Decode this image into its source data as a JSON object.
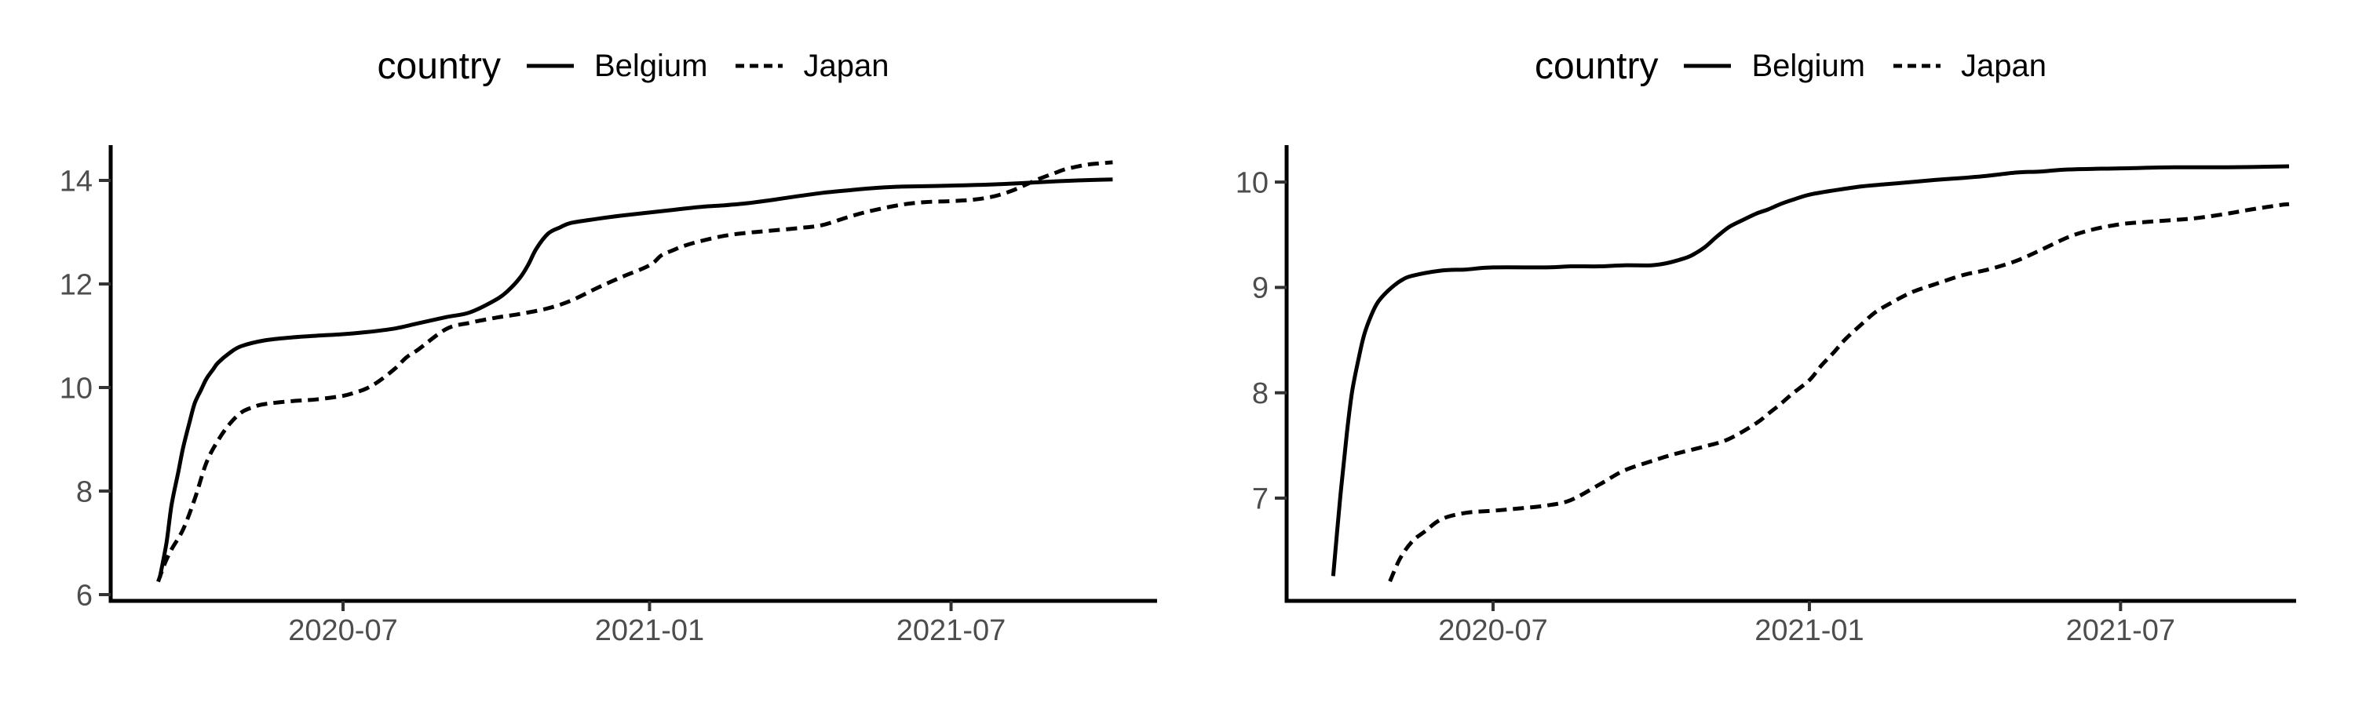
{
  "figure": {
    "background": "#ffffff",
    "colors": {
      "line": "#000000",
      "axis": "#000000",
      "tick_mark": "#333333",
      "tick_label": "#4d4d4d",
      "legend_text": "#000000"
    }
  },
  "chart_data": [
    {
      "type": "line",
      "title": "",
      "legend": {
        "title": "country",
        "position": "top"
      },
      "xlabel": "",
      "ylabel": "",
      "x_ticks": [
        {
          "label": "2020-07",
          "date": "2020-07-01"
        },
        {
          "label": "2021-01",
          "date": "2021-01-01"
        },
        {
          "label": "2021-07",
          "date": "2021-07-01"
        }
      ],
      "y_ticks": [
        6,
        8,
        10,
        12,
        14
      ],
      "xlim": [
        "2020-02-12",
        "2021-11-02"
      ],
      "ylim": [
        5.88,
        14.8
      ],
      "grid": false,
      "series": [
        {
          "name": "Belgium",
          "linetype": "solid",
          "points": [
            [
              "2020-03-13",
              6.33
            ],
            [
              "2020-03-17",
              7.0
            ],
            [
              "2020-03-20",
              7.72
            ],
            [
              "2020-03-24",
              8.35
            ],
            [
              "2020-03-27",
              8.84
            ],
            [
              "2020-03-31",
              9.35
            ],
            [
              "2020-04-03",
              9.7
            ],
            [
              "2020-04-07",
              9.97
            ],
            [
              "2020-04-10",
              10.17
            ],
            [
              "2020-04-14",
              10.35
            ],
            [
              "2020-04-17",
              10.48
            ],
            [
              "2020-04-24",
              10.67
            ],
            [
              "2020-05-01",
              10.8
            ],
            [
              "2020-05-15",
              10.91
            ],
            [
              "2020-06-01",
              10.97
            ],
            [
              "2020-06-15",
              11.0
            ],
            [
              "2020-07-01",
              11.03
            ],
            [
              "2020-07-15",
              11.07
            ],
            [
              "2020-08-01",
              11.14
            ],
            [
              "2020-08-15",
              11.24
            ],
            [
              "2020-09-01",
              11.36
            ],
            [
              "2020-09-15",
              11.45
            ],
            [
              "2020-10-01",
              11.7
            ],
            [
              "2020-10-08",
              11.87
            ],
            [
              "2020-10-15",
              12.11
            ],
            [
              "2020-10-20",
              12.36
            ],
            [
              "2020-10-25",
              12.68
            ],
            [
              "2020-11-01",
              12.97
            ],
            [
              "2020-11-08",
              13.09
            ],
            [
              "2020-11-15",
              13.18
            ],
            [
              "2020-12-01",
              13.26
            ],
            [
              "2020-12-15",
              13.32
            ],
            [
              "2021-01-01",
              13.38
            ],
            [
              "2021-01-15",
              13.43
            ],
            [
              "2021-02-01",
              13.49
            ],
            [
              "2021-02-15",
              13.52
            ],
            [
              "2021-03-01",
              13.56
            ],
            [
              "2021-03-15",
              13.62
            ],
            [
              "2021-04-01",
              13.7
            ],
            [
              "2021-04-15",
              13.76
            ],
            [
              "2021-05-01",
              13.81
            ],
            [
              "2021-05-15",
              13.85
            ],
            [
              "2021-06-01",
              13.88
            ],
            [
              "2021-07-01",
              13.9
            ],
            [
              "2021-08-01",
              13.93
            ],
            [
              "2021-09-01",
              13.98
            ],
            [
              "2021-09-15",
              14.0
            ],
            [
              "2021-10-06",
              14.02
            ]
          ]
        },
        {
          "name": "Japan",
          "linetype": "dashed",
          "points": [
            [
              "2020-03-12",
              6.25
            ],
            [
              "2020-03-16",
              6.6
            ],
            [
              "2020-03-20",
              6.87
            ],
            [
              "2020-03-27",
              7.26
            ],
            [
              "2020-04-03",
              7.85
            ],
            [
              "2020-04-10",
              8.55
            ],
            [
              "2020-04-17",
              8.98
            ],
            [
              "2020-04-24",
              9.3
            ],
            [
              "2020-05-01",
              9.52
            ],
            [
              "2020-05-08",
              9.62
            ],
            [
              "2020-05-15",
              9.68
            ],
            [
              "2020-06-01",
              9.74
            ],
            [
              "2020-06-15",
              9.77
            ],
            [
              "2020-07-01",
              9.84
            ],
            [
              "2020-07-08",
              9.9
            ],
            [
              "2020-07-15",
              9.98
            ],
            [
              "2020-07-22",
              10.11
            ],
            [
              "2020-08-01",
              10.36
            ],
            [
              "2020-08-08",
              10.58
            ],
            [
              "2020-08-15",
              10.73
            ],
            [
              "2020-09-01",
              11.13
            ],
            [
              "2020-09-15",
              11.25
            ],
            [
              "2020-10-01",
              11.35
            ],
            [
              "2020-10-15",
              11.42
            ],
            [
              "2020-11-01",
              11.53
            ],
            [
              "2020-11-15",
              11.68
            ],
            [
              "2020-12-01",
              11.93
            ],
            [
              "2020-12-15",
              12.13
            ],
            [
              "2021-01-01",
              12.36
            ],
            [
              "2021-01-08",
              12.55
            ],
            [
              "2021-01-15",
              12.65
            ],
            [
              "2021-01-22",
              12.74
            ],
            [
              "2021-02-01",
              12.83
            ],
            [
              "2021-02-15",
              12.93
            ],
            [
              "2021-03-01",
              12.99
            ],
            [
              "2021-03-15",
              13.03
            ],
            [
              "2021-04-01",
              13.08
            ],
            [
              "2021-04-15",
              13.14
            ],
            [
              "2021-05-01",
              13.3
            ],
            [
              "2021-05-15",
              13.42
            ],
            [
              "2021-06-01",
              13.53
            ],
            [
              "2021-06-15",
              13.58
            ],
            [
              "2021-07-01",
              13.6
            ],
            [
              "2021-07-15",
              13.63
            ],
            [
              "2021-07-25",
              13.68
            ],
            [
              "2021-08-01",
              13.74
            ],
            [
              "2021-08-08",
              13.82
            ],
            [
              "2021-08-15",
              13.92
            ],
            [
              "2021-08-22",
              14.02
            ],
            [
              "2021-09-01",
              14.14
            ],
            [
              "2021-09-08",
              14.22
            ],
            [
              "2021-09-15",
              14.27
            ],
            [
              "2021-09-22",
              14.31
            ],
            [
              "2021-10-06",
              14.35
            ]
          ]
        }
      ]
    },
    {
      "type": "line",
      "title": "",
      "legend": {
        "title": "country",
        "position": "top"
      },
      "xlabel": "",
      "ylabel": "",
      "x_ticks": [
        {
          "label": "2020-07",
          "date": "2020-07-01"
        },
        {
          "label": "2021-01",
          "date": "2021-01-01"
        },
        {
          "label": "2021-07",
          "date": "2021-07-01"
        }
      ],
      "y_ticks": [
        7,
        8,
        9,
        10
      ],
      "xlim": [
        "2020-03-02",
        "2021-10-12"
      ],
      "ylim": [
        6.02,
        10.35
      ],
      "grid": false,
      "series": [
        {
          "name": "Belgium",
          "linetype": "solid",
          "points": [
            [
              "2020-03-30",
              6.26
            ],
            [
              "2020-04-03",
              6.99
            ],
            [
              "2020-04-07",
              7.62
            ],
            [
              "2020-04-10",
              8.01
            ],
            [
              "2020-04-14",
              8.34
            ],
            [
              "2020-04-17",
              8.55
            ],
            [
              "2020-04-21",
              8.73
            ],
            [
              "2020-04-25",
              8.86
            ],
            [
              "2020-05-01",
              8.97
            ],
            [
              "2020-05-08",
              9.06
            ],
            [
              "2020-05-15",
              9.11
            ],
            [
              "2020-06-01",
              9.16
            ],
            [
              "2020-06-15",
              9.17
            ],
            [
              "2020-07-01",
              9.19
            ],
            [
              "2020-08-01",
              9.19
            ],
            [
              "2020-08-15",
              9.2
            ],
            [
              "2020-09-01",
              9.2
            ],
            [
              "2020-09-15",
              9.21
            ],
            [
              "2020-10-01",
              9.21
            ],
            [
              "2020-10-10",
              9.23
            ],
            [
              "2020-10-17",
              9.26
            ],
            [
              "2020-10-24",
              9.3
            ],
            [
              "2020-11-01",
              9.38
            ],
            [
              "2020-11-08",
              9.48
            ],
            [
              "2020-11-15",
              9.57
            ],
            [
              "2020-11-22",
              9.63
            ],
            [
              "2020-12-01",
              9.7
            ],
            [
              "2020-12-08",
              9.74
            ],
            [
              "2020-12-15",
              9.79
            ],
            [
              "2020-12-22",
              9.83
            ],
            [
              "2021-01-01",
              9.88
            ],
            [
              "2021-01-15",
              9.92
            ],
            [
              "2021-02-01",
              9.96
            ],
            [
              "2021-02-15",
              9.98
            ],
            [
              "2021-03-01",
              10.0
            ],
            [
              "2021-03-15",
              10.02
            ],
            [
              "2021-04-01",
              10.04
            ],
            [
              "2021-04-15",
              10.06
            ],
            [
              "2021-05-01",
              10.09
            ],
            [
              "2021-05-15",
              10.1
            ],
            [
              "2021-06-01",
              10.12
            ],
            [
              "2021-07-01",
              10.13
            ],
            [
              "2021-08-01",
              10.14
            ],
            [
              "2021-09-01",
              10.14
            ],
            [
              "2021-10-07",
              10.15
            ]
          ]
        },
        {
          "name": "Japan",
          "linetype": "dashed",
          "points": [
            [
              "2020-05-02",
              6.21
            ],
            [
              "2020-05-08",
              6.43
            ],
            [
              "2020-05-15",
              6.59
            ],
            [
              "2020-05-22",
              6.68
            ],
            [
              "2020-06-01",
              6.8
            ],
            [
              "2020-06-15",
              6.86
            ],
            [
              "2020-07-01",
              6.88
            ],
            [
              "2020-07-15",
              6.9
            ],
            [
              "2020-08-01",
              6.93
            ],
            [
              "2020-08-15",
              6.98
            ],
            [
              "2020-09-01",
              7.13
            ],
            [
              "2020-09-15",
              7.26
            ],
            [
              "2020-10-01",
              7.35
            ],
            [
              "2020-10-15",
              7.42
            ],
            [
              "2020-11-01",
              7.49
            ],
            [
              "2020-11-15",
              7.56
            ],
            [
              "2020-12-01",
              7.71
            ],
            [
              "2020-12-08",
              7.8
            ],
            [
              "2020-12-15",
              7.89
            ],
            [
              "2020-12-22",
              7.99
            ],
            [
              "2021-01-01",
              8.12
            ],
            [
              "2021-01-08",
              8.26
            ],
            [
              "2021-01-15",
              8.38
            ],
            [
              "2021-01-22",
              8.51
            ],
            [
              "2021-02-01",
              8.66
            ],
            [
              "2021-02-08",
              8.76
            ],
            [
              "2021-02-15",
              8.83
            ],
            [
              "2021-03-01",
              8.95
            ],
            [
              "2021-03-15",
              9.03
            ],
            [
              "2021-04-01",
              9.12
            ],
            [
              "2021-04-15",
              9.17
            ],
            [
              "2021-05-01",
              9.25
            ],
            [
              "2021-05-15",
              9.35
            ],
            [
              "2021-06-01",
              9.48
            ],
            [
              "2021-06-15",
              9.55
            ],
            [
              "2021-07-01",
              9.6
            ],
            [
              "2021-07-15",
              9.62
            ],
            [
              "2021-08-01",
              9.64
            ],
            [
              "2021-08-15",
              9.66
            ],
            [
              "2021-09-01",
              9.7
            ],
            [
              "2021-09-15",
              9.74
            ],
            [
              "2021-10-01",
              9.78
            ],
            [
              "2021-10-07",
              9.79
            ]
          ]
        }
      ]
    }
  ]
}
